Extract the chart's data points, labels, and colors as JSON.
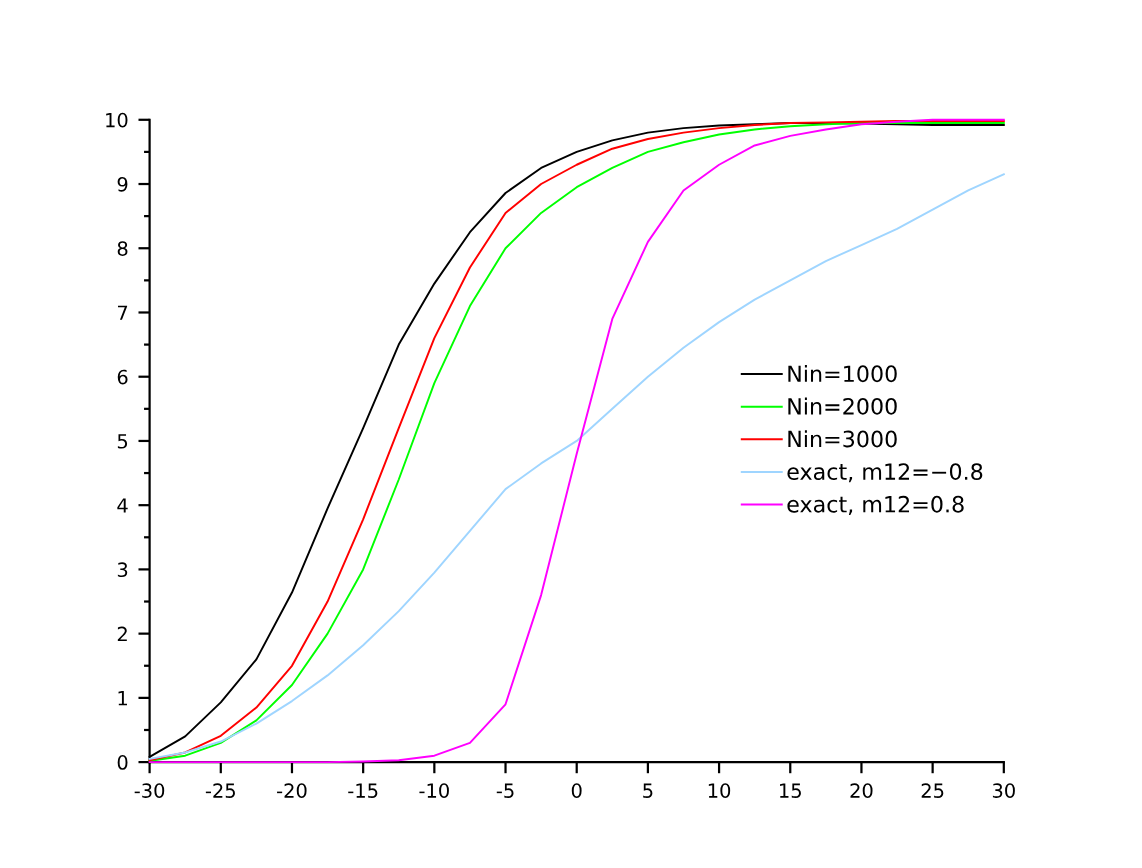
{
  "chart_data": {
    "type": "line",
    "x": [
      -30,
      -27.5,
      -25,
      -22.5,
      -20,
      -17.5,
      -15,
      -12.5,
      -10,
      -7.5,
      -5,
      -2.5,
      0,
      2.5,
      5,
      7.5,
      10,
      12.5,
      15,
      17.5,
      20,
      22.5,
      25,
      27.5,
      30
    ],
    "series": [
      {
        "name": "Nin=1000",
        "color": "#000000",
        "values": [
          0.08,
          0.4,
          0.93,
          1.6,
          2.64,
          3.95,
          5.2,
          6.5,
          7.45,
          8.25,
          8.86,
          9.25,
          9.5,
          9.68,
          9.8,
          9.87,
          9.91,
          9.93,
          9.95,
          9.95,
          9.94,
          9.93,
          9.92,
          9.92,
          9.92
        ]
      },
      {
        "name": "Nin=2000",
        "color": "#00ff00",
        "values": [
          0.02,
          0.1,
          0.3,
          0.65,
          1.2,
          2.0,
          3.0,
          4.4,
          5.9,
          7.1,
          8.0,
          8.55,
          8.95,
          9.25,
          9.5,
          9.65,
          9.77,
          9.85,
          9.9,
          9.93,
          9.95,
          9.95,
          9.95,
          9.95,
          9.95
        ]
      },
      {
        "name": "Nin=3000",
        "color": "#ff0000",
        "values": [
          0.03,
          0.15,
          0.41,
          0.85,
          1.5,
          2.5,
          3.78,
          5.2,
          6.6,
          7.7,
          8.55,
          9.0,
          9.3,
          9.55,
          9.7,
          9.8,
          9.87,
          9.92,
          9.95,
          9.96,
          9.97,
          9.98,
          9.98,
          9.98,
          9.98
        ]
      },
      {
        "name": "exact, m12=−0.8",
        "color": "#9fd5ff",
        "values": [
          0.05,
          0.15,
          0.32,
          0.6,
          0.95,
          1.35,
          1.82,
          2.35,
          2.95,
          3.6,
          4.25,
          4.65,
          5.0,
          5.5,
          6.0,
          6.45,
          6.85,
          7.2,
          7.5,
          7.8,
          8.05,
          8.3,
          8.6,
          8.9,
          9.15
        ]
      },
      {
        "name": "exact, m12=0.8",
        "color": "#ff00ff",
        "values": [
          0,
          0,
          0,
          0,
          0,
          0,
          0.01,
          0.03,
          0.1,
          0.3,
          0.9,
          2.6,
          4.8,
          6.9,
          8.1,
          8.9,
          9.3,
          9.6,
          9.75,
          9.85,
          9.93,
          9.97,
          10.0,
          10.0,
          10.0
        ]
      }
    ],
    "xlim": [
      -30,
      30
    ],
    "ylim": [
      0,
      10
    ],
    "xticks": [
      -30,
      -25,
      -20,
      -15,
      -10,
      -5,
      0,
      5,
      10,
      15,
      20,
      25,
      30
    ],
    "yticks": [
      0,
      {
        "value": 0.5,
        "label": null
      },
      1,
      {
        "value": 1.5,
        "label": null
      },
      2,
      {
        "value": 2.5,
        "label": null
      },
      3,
      {
        "value": 3.5,
        "label": null
      },
      4,
      {
        "value": 4.5,
        "label": null
      },
      5,
      {
        "value": 5.5,
        "label": null
      },
      6,
      {
        "value": 6.5,
        "label": null
      },
      7,
      {
        "value": 7.5,
        "label": null
      },
      8,
      {
        "value": 8.5,
        "label": null
      },
      9,
      {
        "value": 9.5,
        "label": null
      },
      10
    ],
    "grid": false,
    "legend": "right",
    "marker": "none",
    "line_style": "solid"
  }
}
